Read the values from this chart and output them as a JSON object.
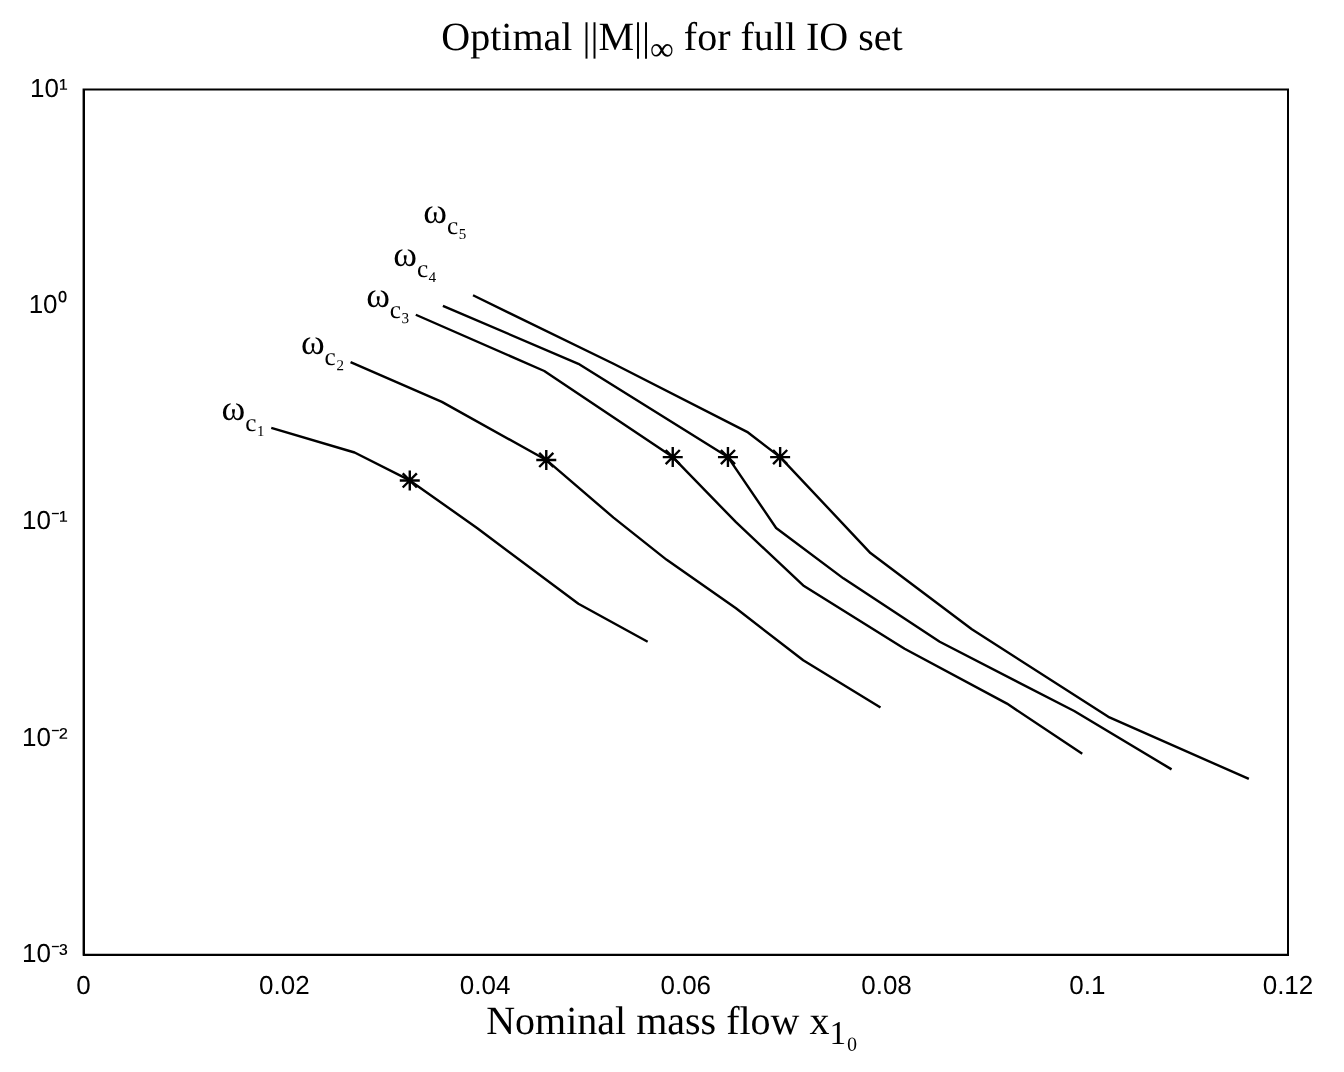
{
  "chart_data": {
    "type": "line",
    "title": "Optimal ||M||$_{∞}$ for full IO set",
    "xlabel": "Nominal mass flow x$_{1₀}$",
    "log": "y",
    "grid": false,
    "legend": false,
    "marker": "none",
    "line_style": "solid",
    "xlim": [
      0,
      0.12
    ],
    "xticks": [
      0,
      0.02,
      0.04,
      0.06,
      0.08,
      0.1,
      0.12
    ],
    "ylim": [
      0.001,
      10
    ],
    "yticks": [
      {
        "value": 0.001,
        "label": "10⁻³"
      },
      {
        "value": 0.01,
        "label": "10⁻²"
      },
      {
        "value": 0.1,
        "label": "10⁻¹"
      },
      {
        "value": 1,
        "label": "10⁰"
      },
      {
        "value": 10,
        "label": "10¹"
      }
    ],
    "series": [
      {
        "name": "ω$_{c₁}$",
        "color": "#000000",
        "x": [
          0.0187,
          0.027,
          0.0325,
          0.0392,
          0.0493,
          0.0562
        ],
        "values": [
          0.273,
          0.21,
          0.156,
          0.094,
          0.042,
          0.028
        ]
      },
      {
        "name": "ω$_{c₂}$",
        "color": "#000000",
        "x": [
          0.0266,
          0.0357,
          0.0461,
          0.0528,
          0.0581,
          0.065,
          0.0717,
          0.0794
        ],
        "values": [
          0.55,
          0.36,
          0.194,
          0.105,
          0.067,
          0.04,
          0.023,
          0.0139
        ]
      },
      {
        "name": "ω$_{c₃}$",
        "color": "#000000",
        "x": [
          0.0331,
          0.0459,
          0.0587,
          0.065,
          0.0717,
          0.0818,
          0.092,
          0.0995
        ],
        "values": [
          0.91,
          0.5,
          0.2,
          0.1,
          0.051,
          0.026,
          0.0145,
          0.0085
        ]
      },
      {
        "name": "ω$_{c₄}$",
        "color": "#000000",
        "x": [
          0.0358,
          0.0493,
          0.0642,
          0.069,
          0.0757,
          0.0853,
          0.0987,
          0.1084
        ],
        "values": [
          1.0,
          0.54,
          0.2,
          0.094,
          0.055,
          0.028,
          0.0134,
          0.0072
        ]
      },
      {
        "name": "ω$_{c₅}$",
        "color": "#000000",
        "x": [
          0.0388,
          0.0528,
          0.0662,
          0.0694,
          0.0784,
          0.0885,
          0.1021,
          0.1161
        ],
        "values": [
          1.12,
          0.54,
          0.26,
          0.2,
          0.072,
          0.032,
          0.0126,
          0.0065
        ]
      },
      {
        "type": "scatter",
        "marker": "cross",
        "color": "#000000",
        "x": [
          0.0325,
          0.0461,
          0.0587,
          0.0642,
          0.0694
        ],
        "values": [
          0.156,
          0.194,
          0.2,
          0.2,
          0.2
        ]
      }
    ]
  }
}
